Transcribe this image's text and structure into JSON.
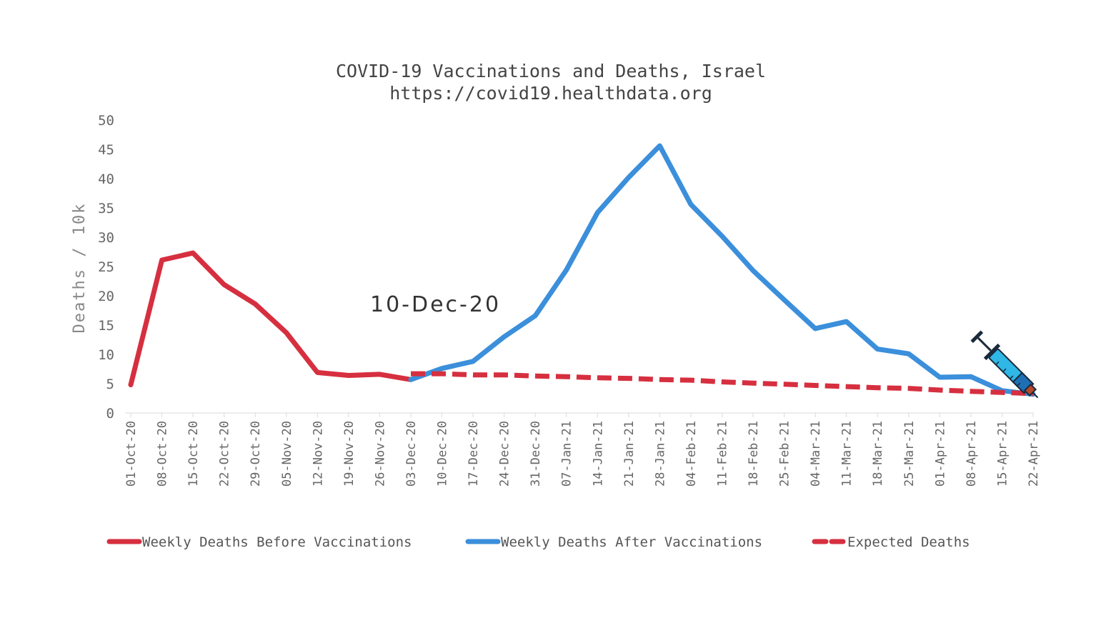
{
  "chart_data": {
    "type": "line",
    "title": "COVID-19 Vaccinations and Deaths, Israel",
    "subtitle": "https://covid19.healthdata.org",
    "ylabel": "Deaths / 10k",
    "xlabel": "",
    "ylim": [
      0,
      50
    ],
    "yticks": [
      0,
      5,
      10,
      15,
      20,
      25,
      30,
      35,
      40,
      45,
      50
    ],
    "grid": false,
    "legend_position": "bottom",
    "categories": [
      "01-Oct-20",
      "08-Oct-20",
      "15-Oct-20",
      "22-Oct-20",
      "29-Oct-20",
      "05-Nov-20",
      "12-Nov-20",
      "19-Nov-20",
      "26-Nov-20",
      "03-Dec-20",
      "10-Dec-20",
      "17-Dec-20",
      "24-Dec-20",
      "31-Dec-20",
      "07-Jan-21",
      "14-Jan-21",
      "21-Jan-21",
      "28-Jan-21",
      "04-Feb-21",
      "11-Feb-21",
      "18-Feb-21",
      "25-Feb-21",
      "04-Mar-21",
      "11-Mar-21",
      "18-Mar-21",
      "25-Mar-21",
      "01-Apr-21",
      "08-Apr-21",
      "15-Apr-21",
      "22-Apr-21"
    ],
    "series": [
      {
        "name": "Weekly Deaths Before Vaccinations",
        "color": "#d62f3f",
        "style": "solid",
        "values": [
          4.8,
          26.1,
          27.3,
          21.9,
          18.6,
          13.7,
          6.9,
          6.4,
          6.6,
          5.7,
          null,
          null,
          null,
          null,
          null,
          null,
          null,
          null,
          null,
          null,
          null,
          null,
          null,
          null,
          null,
          null,
          null,
          null,
          null,
          null
        ]
      },
      {
        "name": "Weekly Deaths After Vaccinations",
        "color": "#3b8fdb",
        "style": "solid",
        "values": [
          null,
          null,
          null,
          null,
          null,
          null,
          null,
          null,
          null,
          5.7,
          7.6,
          8.8,
          13.0,
          16.6,
          24.4,
          34.2,
          40.2,
          45.6,
          35.6,
          30.2,
          24.3,
          19.3,
          14.4,
          15.6,
          10.9,
          10.1,
          6.1,
          6.2,
          3.8,
          3.2
        ]
      },
      {
        "name": "Expected Deaths",
        "color": "#d62f3f",
        "style": "dashed",
        "values": [
          null,
          null,
          null,
          null,
          null,
          null,
          null,
          null,
          null,
          6.7,
          6.7,
          6.5,
          6.5,
          6.3,
          6.2,
          6.0,
          5.9,
          5.7,
          5.6,
          5.3,
          5.1,
          4.9,
          4.7,
          4.5,
          4.3,
          4.2,
          3.9,
          3.7,
          3.5,
          3.3
        ]
      }
    ],
    "annotations": [
      {
        "text": "10-Dec-20",
        "icon": "syringe-icon"
      }
    ]
  }
}
